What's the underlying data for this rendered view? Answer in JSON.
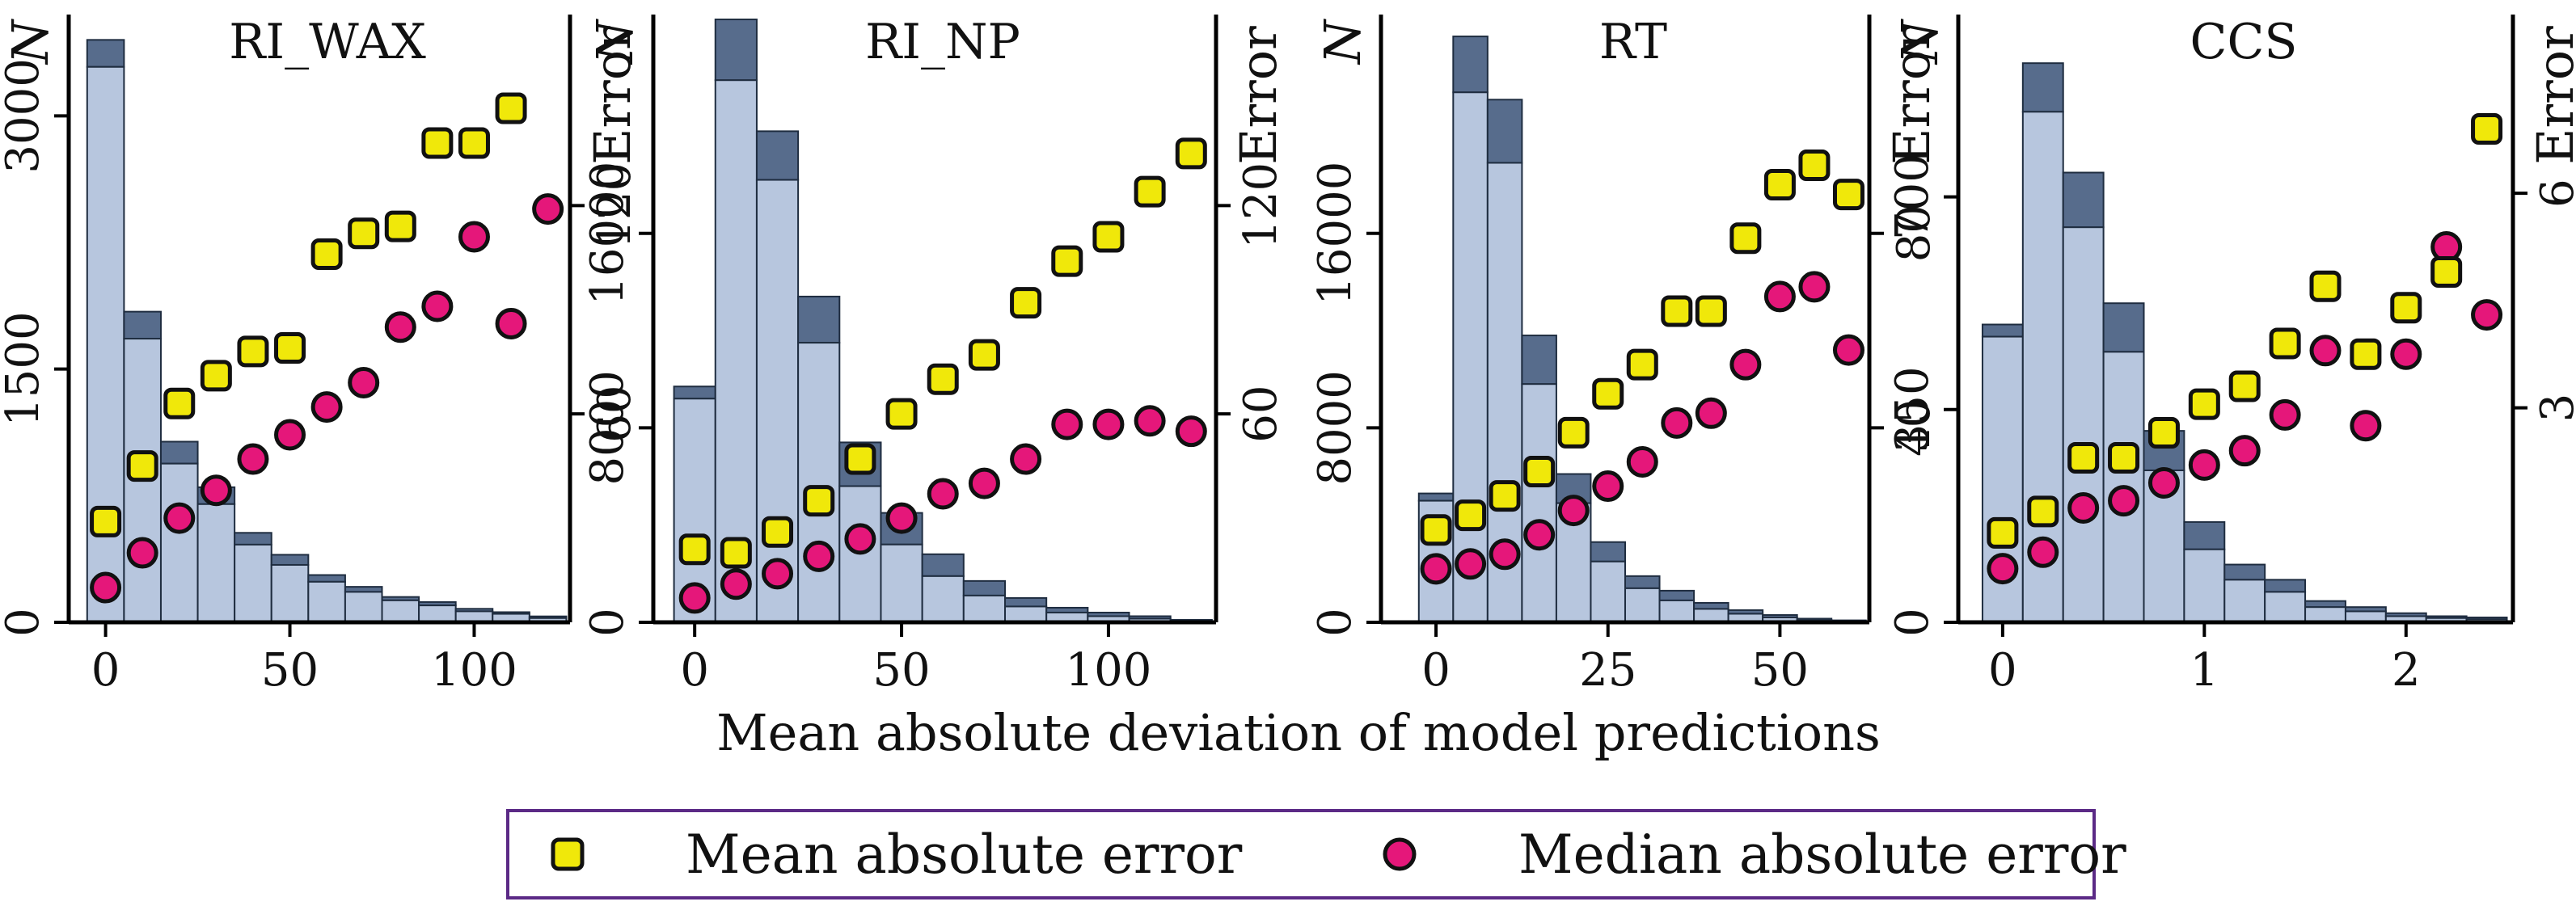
{
  "figure": {
    "xlabel": "Mean absolute deviation of model predictions",
    "left_axis_label": "N",
    "right_axis_label": "Error",
    "colors": {
      "bar_light": "#b7c6de",
      "bar_dark": "#576c8c",
      "bar_edge": "#1f2d40",
      "mean_marker": "#f0e80a",
      "median_marker": "#e5177a",
      "legend_border": "#5b2a86",
      "axis": "#000000"
    }
  },
  "legend": {
    "items": [
      {
        "label": "Mean absolute error",
        "marker": "square"
      },
      {
        "label": "Median absolute error",
        "marker": "circle"
      }
    ]
  },
  "chart_data": [
    {
      "type": "bar",
      "title": "RI_WAX",
      "xlim": [
        -10,
        126
      ],
      "xticks": [
        0,
        50,
        100
      ],
      "ylim_left": [
        0,
        3600
      ],
      "yticks_left": [
        0,
        1500,
        3000
      ],
      "ylim_right": [
        0,
        175
      ],
      "yticks_right": [
        60,
        120
      ],
      "bins": [
        [
          -5,
          5
        ],
        [
          5,
          15
        ],
        [
          15,
          25
        ],
        [
          25,
          35
        ],
        [
          35,
          45
        ],
        [
          45,
          55
        ],
        [
          55,
          65
        ],
        [
          65,
          75
        ],
        [
          75,
          85
        ],
        [
          85,
          95
        ],
        [
          95,
          105
        ],
        [
          105,
          115
        ],
        [
          115,
          125
        ]
      ],
      "counts_total": [
        3450,
        1840,
        1070,
        800,
        530,
        400,
        280,
        210,
        150,
        120,
        80,
        60,
        35
      ],
      "counts_light": [
        3290,
        1680,
        940,
        700,
        460,
        340,
        240,
        180,
        130,
        100,
        65,
        50,
        25
      ],
      "mean_error": {
        "x": [
          0,
          10,
          20,
          30,
          40,
          50,
          60,
          70,
          80,
          90,
          100,
          110,
          120
        ],
        "y": [
          29,
          45,
          63,
          71,
          78,
          79,
          106,
          112,
          114,
          138,
          138,
          148,
          null
        ]
      },
      "median_error": {
        "x": [
          0,
          10,
          20,
          30,
          40,
          50,
          60,
          70,
          80,
          90,
          100,
          110,
          120
        ],
        "y": [
          10,
          20,
          30,
          38,
          47,
          54,
          62,
          69,
          85,
          91,
          111,
          86,
          119
        ]
      }
    },
    {
      "type": "bar",
      "title": "RI_NP",
      "xlim": [
        -10,
        126
      ],
      "xticks": [
        0,
        50,
        100
      ],
      "ylim_left": [
        0,
        25000
      ],
      "yticks_left": [
        0,
        8000,
        16000
      ],
      "ylim_right": [
        0,
        175
      ],
      "yticks_right": [
        60,
        120
      ],
      "bins": [
        [
          -5,
          5
        ],
        [
          5,
          15
        ],
        [
          15,
          25
        ],
        [
          25,
          35
        ],
        [
          35,
          45
        ],
        [
          45,
          55
        ],
        [
          55,
          65
        ],
        [
          65,
          75
        ],
        [
          75,
          85
        ],
        [
          85,
          95
        ],
        [
          95,
          105
        ],
        [
          105,
          115
        ],
        [
          115,
          125
        ]
      ],
      "counts_total": [
        9700,
        24800,
        20200,
        13400,
        7400,
        4500,
        2800,
        1700,
        1000,
        600,
        400,
        250,
        100
      ],
      "counts_light": [
        9200,
        22300,
        18200,
        11500,
        5600,
        3200,
        1900,
        1100,
        650,
        400,
        250,
        150,
        50
      ],
      "mean_error": {
        "x": [
          0,
          10,
          20,
          30,
          40,
          50,
          60,
          70,
          80,
          90,
          100,
          110,
          120
        ],
        "y": [
          21,
          20,
          26,
          35,
          47,
          60,
          70,
          77,
          92,
          104,
          111,
          124,
          135
        ]
      },
      "median_error": {
        "x": [
          0,
          10,
          20,
          30,
          40,
          50,
          60,
          70,
          80,
          90,
          100,
          110,
          120
        ],
        "y": [
          7,
          11,
          14,
          19,
          24,
          30,
          37,
          40,
          47,
          57,
          57,
          58,
          55
        ]
      }
    },
    {
      "type": "bar",
      "title": "RT",
      "xlim": [
        -8,
        63
      ],
      "xticks": [
        0,
        25,
        50
      ],
      "ylim_left": [
        0,
        25000
      ],
      "yticks_left": [
        0,
        8000,
        16000
      ],
      "ylim_right": [
        0,
        125
      ],
      "yticks_right": [
        40,
        80
      ],
      "bins": [
        [
          -2.5,
          2.5
        ],
        [
          2.5,
          7.5
        ],
        [
          7.5,
          12.5
        ],
        [
          12.5,
          17.5
        ],
        [
          17.5,
          22.5
        ],
        [
          22.5,
          27.5
        ],
        [
          27.5,
          32.5
        ],
        [
          32.5,
          37.5
        ],
        [
          37.5,
          42.5
        ],
        [
          42.5,
          47.5
        ],
        [
          47.5,
          52.5
        ],
        [
          52.5,
          57.5
        ],
        [
          57.5,
          62.5
        ]
      ],
      "counts_total": [
        5300,
        24100,
        21500,
        11800,
        6100,
        3300,
        1900,
        1300,
        800,
        500,
        300,
        150,
        80
      ],
      "counts_light": [
        5000,
        21800,
        18900,
        9800,
        4900,
        2500,
        1400,
        900,
        550,
        350,
        200,
        100,
        50
      ],
      "mean_error": {
        "x": [
          0,
          5,
          10,
          15,
          20,
          25,
          30,
          35,
          40,
          45,
          50,
          55,
          60
        ],
        "y": [
          19,
          22,
          26,
          31,
          39,
          47,
          53,
          64,
          64,
          79,
          90,
          94,
          88
        ]
      },
      "median_error": {
        "x": [
          0,
          5,
          10,
          15,
          20,
          25,
          30,
          35,
          40,
          45,
          50,
          55,
          60
        ],
        "y": [
          11,
          12,
          14,
          18,
          23,
          28,
          33,
          41,
          43,
          53,
          67,
          69,
          56
        ]
      }
    },
    {
      "type": "bar",
      "title": "CCS",
      "xlim": [
        -0.22,
        2.53
      ],
      "xticks": [
        0,
        1,
        2
      ],
      "ylim_left": [
        0,
        1000
      ],
      "yticks_left": [
        0,
        350,
        700
      ],
      "ylim_right": [
        0,
        8.5
      ],
      "yticks_right": [
        3,
        6
      ],
      "bins": [
        [
          -0.1,
          0.1
        ],
        [
          0.1,
          0.3
        ],
        [
          0.3,
          0.5
        ],
        [
          0.5,
          0.7
        ],
        [
          0.7,
          0.9
        ],
        [
          0.9,
          1.1
        ],
        [
          1.1,
          1.3
        ],
        [
          1.3,
          1.5
        ],
        [
          1.5,
          1.7
        ],
        [
          1.7,
          1.9
        ],
        [
          1.9,
          2.1
        ],
        [
          2.1,
          2.3
        ],
        [
          2.3,
          2.5
        ]
      ],
      "counts_total": [
        490,
        920,
        740,
        525,
        315,
        165,
        95,
        70,
        35,
        25,
        15,
        10,
        8
      ],
      "counts_light": [
        470,
        840,
        650,
        445,
        250,
        120,
        70,
        50,
        25,
        18,
        10,
        7,
        5
      ],
      "mean_error": {
        "x": [
          0,
          0.2,
          0.4,
          0.6,
          0.8,
          1.0,
          1.2,
          1.4,
          1.6,
          1.8,
          2.0,
          2.2,
          2.4
        ],
        "y": [
          1.25,
          1.55,
          2.3,
          2.3,
          2.65,
          3.05,
          3.3,
          3.9,
          4.7,
          3.75,
          4.4,
          4.9,
          6.9
        ]
      },
      "median_error": {
        "x": [
          0,
          0.2,
          0.4,
          0.6,
          0.8,
          1.0,
          1.2,
          1.4,
          1.6,
          1.8,
          2.0,
          2.2,
          2.4
        ],
        "y": [
          0.75,
          0.98,
          1.6,
          1.7,
          1.95,
          2.2,
          2.4,
          2.9,
          3.8,
          2.75,
          3.75,
          5.25,
          4.3
        ]
      }
    }
  ]
}
